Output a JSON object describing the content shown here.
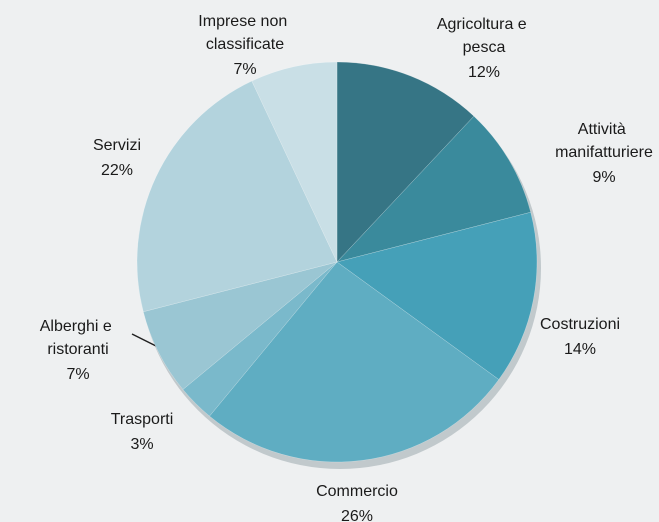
{
  "chart_data": {
    "type": "pie",
    "categories": [
      "Agricoltura e pesca",
      "Attività manifatturiere",
      "Costruzioni",
      "Commercio",
      "Trasporti",
      "Alberghi e ristoranti",
      "Servizi",
      "Imprese non classificate"
    ],
    "values": [
      12,
      9,
      14,
      26,
      3,
      7,
      22,
      7
    ],
    "value_labels": [
      "12%",
      "9%",
      "14%",
      "26%",
      "3%",
      "7%",
      "22%",
      "7%"
    ],
    "colors": [
      "#367585",
      "#3a8a9c",
      "#45a0b8",
      "#5fadc2",
      "#7ab9cb",
      "#9ac6d3",
      "#b3d3dd",
      "#c9dfe6"
    ]
  }
}
